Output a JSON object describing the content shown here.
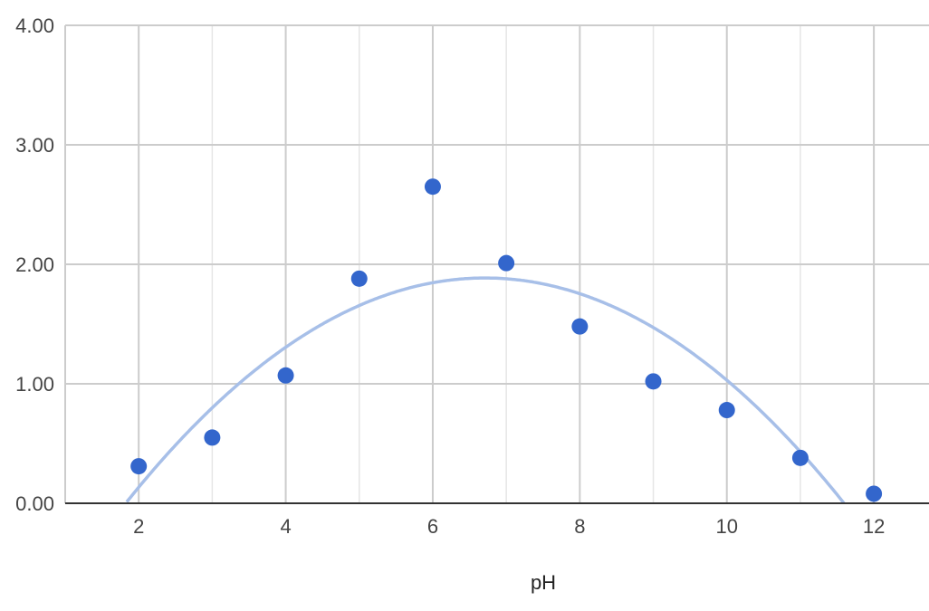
{
  "chart_data": {
    "type": "scatter",
    "title": "",
    "xlabel": "pH",
    "ylabel": "",
    "xlim": [
      1.0,
      12.75
    ],
    "ylim": [
      0,
      4
    ],
    "x_ticks": [
      2,
      4,
      6,
      8,
      10,
      12
    ],
    "y_ticks": [
      0,
      1,
      2,
      3,
      4
    ],
    "x_tick_labels": [
      "2",
      "4",
      "6",
      "8",
      "10",
      "12"
    ],
    "y_tick_labels": [
      "0.00",
      "1.00",
      "2.00",
      "3.00",
      "4.00"
    ],
    "grid": true,
    "legend": "none",
    "series": [
      {
        "x": [
          2,
          3,
          4,
          5,
          6,
          7,
          8,
          9,
          10,
          11,
          12
        ],
        "y": [
          0.31,
          0.55,
          1.07,
          1.88,
          2.65,
          2.01,
          1.48,
          1.02,
          0.78,
          0.38,
          0.08
        ],
        "color": "#3366cc"
      }
    ],
    "trendline": {
      "type": "polynomial",
      "degree": 2,
      "coefficients": [
        -1.67,
        1.06,
        -0.079
      ],
      "color": "#a7bfe8"
    }
  }
}
